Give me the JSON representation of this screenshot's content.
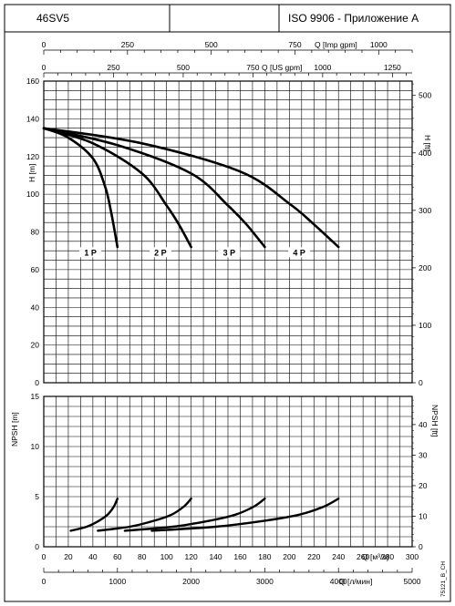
{
  "header": {
    "model": "46SV5",
    "standard": "ISO 9906 - Приложение A"
  },
  "footer": {
    "code": "75121_B_CH"
  },
  "chart_data": [
    {
      "type": "line",
      "name": "head",
      "xlabel": "Q [м³/ч]",
      "x_range": [
        0,
        300
      ],
      "ylabel_left": "H [m]",
      "ylim_left": [
        0,
        160
      ],
      "left_ticks": [
        0,
        20,
        40,
        60,
        80,
        100,
        120,
        140,
        160
      ],
      "ylabel_right": "H [ft]",
      "right_ticks": [
        0,
        100,
        200,
        300,
        400,
        500
      ],
      "top_axis_imp": {
        "label": "Q [Imp gpm]",
        "ticks": [
          0,
          250,
          500,
          750,
          1000
        ]
      },
      "top_axis_us": {
        "label": "Q [US gpm]",
        "ticks": [
          0,
          250,
          500,
          750,
          1000,
          1250
        ]
      },
      "series": [
        {
          "name": "1 P",
          "label_at": [
            38,
            68
          ],
          "x": [
            0,
            20,
            40,
            50,
            55,
            60
          ],
          "y": [
            135,
            130,
            119,
            104,
            90,
            72
          ]
        },
        {
          "name": "2 P",
          "label_at": [
            95,
            68
          ],
          "x": [
            0,
            40,
            80,
            100,
            110,
            120
          ],
          "y": [
            135,
            127,
            111,
            94,
            84,
            72
          ]
        },
        {
          "name": "3 P",
          "label_at": [
            151,
            68
          ],
          "x": [
            0,
            60,
            120,
            150,
            165,
            180
          ],
          "y": [
            135,
            126,
            111,
            94,
            84,
            72
          ]
        },
        {
          "name": "4 P",
          "label_at": [
            208,
            68
          ],
          "x": [
            0,
            80,
            160,
            200,
            220,
            240
          ],
          "y": [
            135,
            127,
            112,
            95,
            84,
            72
          ]
        }
      ]
    },
    {
      "type": "line",
      "name": "npsh",
      "xlabel": "Q [м³/ч]",
      "x_range": [
        0,
        300
      ],
      "x_ticks": [
        0,
        20,
        40,
        60,
        80,
        100,
        120,
        140,
        160,
        180,
        200,
        220,
        240,
        260,
        280,
        300
      ],
      "ylabel_left": "NPSH [m]",
      "ylim_left": [
        0,
        15
      ],
      "left_ticks": [
        0,
        5,
        10,
        15
      ],
      "ylabel_right": "NPSH [ft]",
      "right_ticks": [
        0,
        10,
        20,
        30,
        40
      ],
      "bottom_axis_lmin": {
        "label": "Q [л/мин]",
        "ticks": [
          0,
          1000,
          2000,
          3000,
          4000,
          5000
        ]
      },
      "series": [
        {
          "name": "1 P",
          "x": [
            22,
            35,
            45,
            52,
            57,
            60
          ],
          "y": [
            1.6,
            2.0,
            2.6,
            3.2,
            4.0,
            4.8
          ]
        },
        {
          "name": "2 P",
          "x": [
            44,
            70,
            90,
            104,
            114,
            120
          ],
          "y": [
            1.6,
            2.0,
            2.6,
            3.2,
            4.0,
            4.8
          ]
        },
        {
          "name": "3 P",
          "x": [
            66,
            105,
            135,
            156,
            171,
            180
          ],
          "y": [
            1.6,
            2.0,
            2.6,
            3.2,
            4.0,
            4.8
          ]
        },
        {
          "name": "4 P",
          "x": [
            88,
            140,
            180,
            208,
            228,
            240
          ],
          "y": [
            1.6,
            2.0,
            2.6,
            3.2,
            4.0,
            4.8
          ]
        }
      ]
    }
  ]
}
